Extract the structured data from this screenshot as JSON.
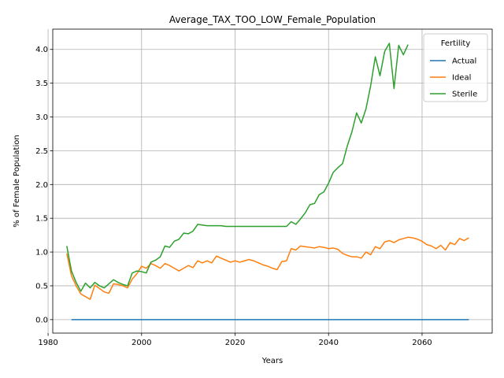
{
  "chart_data": {
    "type": "line",
    "title": "Average_TAX_TOO_LOW_Female_Population",
    "xlabel": "Years",
    "ylabel": "% of Female Population",
    "xlim": [
      1981,
      2075
    ],
    "ylim": [
      -0.2,
      4.3
    ],
    "xticks": [
      1980,
      2000,
      2020,
      2040,
      2060
    ],
    "yticks": [
      0.0,
      0.5,
      1.0,
      1.5,
      2.0,
      2.5,
      3.0,
      3.5,
      4.0
    ],
    "grid": true,
    "legend": {
      "title": "Fertility",
      "position": "top-right"
    },
    "series": [
      {
        "name": "Actual",
        "color": "#1f77b4",
        "x": [
          1985,
          2070
        ],
        "y": [
          0.0,
          0.0
        ]
      },
      {
        "name": "Ideal",
        "color": "#ff7f0e",
        "x": [
          1984,
          1985,
          1986,
          1987,
          1988,
          1989,
          1990,
          1991,
          1992,
          1993,
          1994,
          1995,
          1996,
          1997,
          1998,
          1999,
          2000,
          2001,
          2002,
          2003,
          2004,
          2005,
          2006,
          2007,
          2008,
          2009,
          2010,
          2011,
          2012,
          2013,
          2014,
          2015,
          2016,
          2017,
          2018,
          2019,
          2020,
          2021,
          2022,
          2023,
          2024,
          2025,
          2026,
          2027,
          2028,
          2029,
          2030,
          2031,
          2032,
          2033,
          2034,
          2035,
          2036,
          2037,
          2038,
          2039,
          2040,
          2041,
          2042,
          2043,
          2044,
          2045,
          2046,
          2047,
          2048,
          2049,
          2050,
          2051,
          2052,
          2053,
          2054,
          2055,
          2056,
          2057,
          2058,
          2059,
          2060,
          2061,
          2062,
          2063,
          2064,
          2065,
          2066,
          2067,
          2068,
          2069,
          2070
        ],
        "y": [
          0.98,
          0.65,
          0.5,
          0.38,
          0.34,
          0.3,
          0.51,
          0.46,
          0.41,
          0.39,
          0.53,
          0.52,
          0.5,
          0.47,
          0.6,
          0.68,
          0.79,
          0.76,
          0.83,
          0.8,
          0.76,
          0.83,
          0.8,
          0.76,
          0.72,
          0.76,
          0.8,
          0.77,
          0.87,
          0.84,
          0.87,
          0.84,
          0.94,
          0.91,
          0.88,
          0.85,
          0.87,
          0.85,
          0.87,
          0.89,
          0.87,
          0.84,
          0.81,
          0.79,
          0.76,
          0.74,
          0.86,
          0.87,
          1.05,
          1.03,
          1.09,
          1.08,
          1.07,
          1.06,
          1.08,
          1.07,
          1.05,
          1.06,
          1.04,
          0.98,
          0.95,
          0.93,
          0.93,
          0.91,
          1.0,
          0.96,
          1.08,
          1.05,
          1.15,
          1.17,
          1.14,
          1.18,
          1.2,
          1.22,
          1.21,
          1.19,
          1.16,
          1.11,
          1.09,
          1.05,
          1.1,
          1.03,
          1.14,
          1.11,
          1.2,
          1.17,
          1.21
        ]
      },
      {
        "name": "Sterile",
        "color": "#2ca02c",
        "x": [
          1984,
          1985,
          1986,
          1987,
          1988,
          1989,
          1990,
          1991,
          1992,
          1993,
          1994,
          1995,
          1996,
          1997,
          1998,
          1999,
          2000,
          2001,
          2002,
          2003,
          2004,
          2005,
          2006,
          2007,
          2008,
          2009,
          2010,
          2011,
          2012,
          2013,
          2014,
          2015,
          2016,
          2017,
          2018,
          2019,
          2020,
          2021,
          2022,
          2023,
          2024,
          2025,
          2026,
          2027,
          2028,
          2029,
          2030,
          2031,
          2032,
          2033,
          2034,
          2035,
          2036,
          2037,
          2038,
          2039,
          2040,
          2041,
          2042,
          2043,
          2044,
          2045,
          2046,
          2047,
          2048,
          2049,
          2050,
          2051,
          2052,
          2053,
          2054,
          2055,
          2056,
          2057
        ],
        "y": [
          1.09,
          0.72,
          0.55,
          0.42,
          0.54,
          0.47,
          0.55,
          0.5,
          0.47,
          0.53,
          0.59,
          0.55,
          0.52,
          0.5,
          0.69,
          0.72,
          0.71,
          0.69,
          0.85,
          0.88,
          0.93,
          1.09,
          1.07,
          1.16,
          1.19,
          1.28,
          1.27,
          1.31,
          1.41,
          1.4,
          1.39,
          1.39,
          1.39,
          1.39,
          1.38,
          1.38,
          1.38,
          1.38,
          1.38,
          1.38,
          1.38,
          1.38,
          1.38,
          1.38,
          1.38,
          1.38,
          1.38,
          1.38,
          1.45,
          1.41,
          1.49,
          1.58,
          1.7,
          1.72,
          1.85,
          1.89,
          2.02,
          2.18,
          2.25,
          2.31,
          2.57,
          2.78,
          3.06,
          2.91,
          3.12,
          3.46,
          3.89,
          3.61,
          3.97,
          4.09,
          3.42,
          4.06,
          3.92,
          4.07
        ]
      }
    ]
  }
}
